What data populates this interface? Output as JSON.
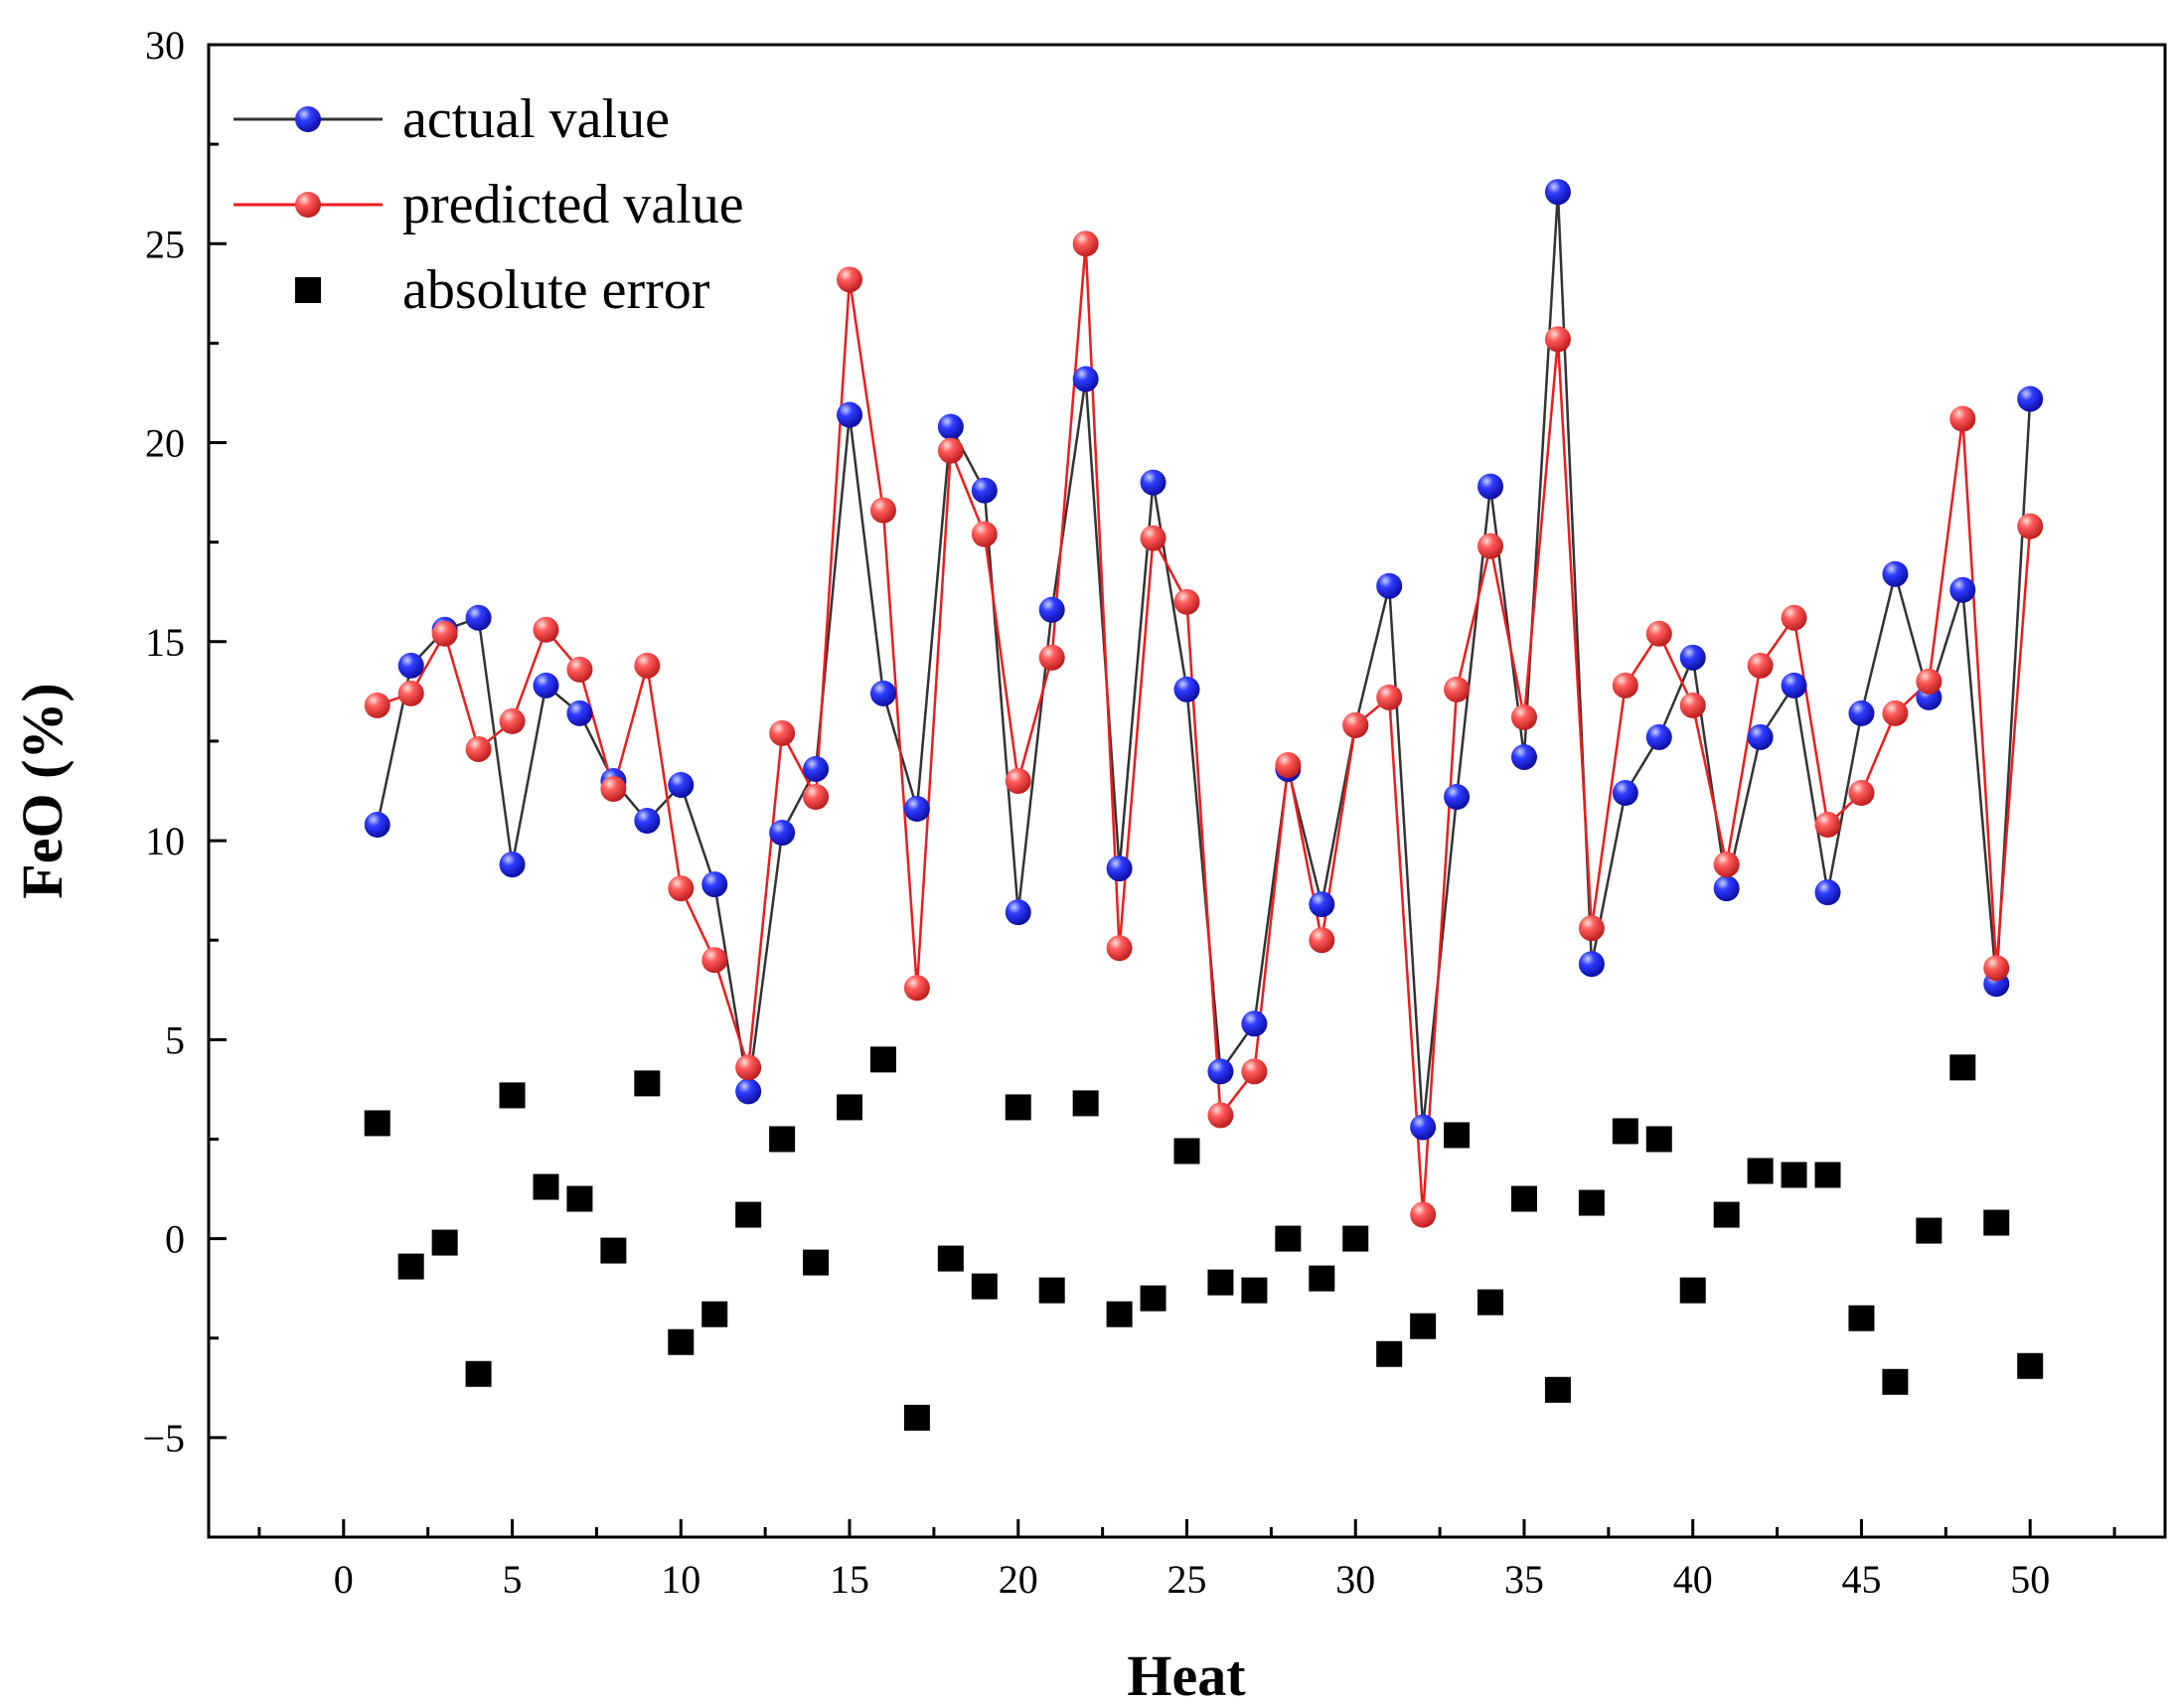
{
  "chart_data": {
    "type": "line",
    "title": "",
    "xlabel": "Heat",
    "ylabel": "FeO (%)",
    "xlim": [
      -4,
      54
    ],
    "ylim": [
      -7.5,
      30
    ],
    "xticks": [
      0,
      5,
      10,
      15,
      20,
      25,
      30,
      35,
      40,
      45,
      50
    ],
    "xtick_labels": [
      "0",
      "5",
      "10",
      "15",
      "20",
      "25",
      "30",
      "35",
      "40",
      "45",
      "50"
    ],
    "yticks": [
      -5,
      0,
      5,
      10,
      15,
      20,
      25,
      30
    ],
    "ytick_labels": [
      "−5",
      "0",
      "5",
      "10",
      "15",
      "20",
      "25",
      "30"
    ],
    "grid": false,
    "legend_position": "top-left",
    "x": [
      1,
      2,
      3,
      4,
      5,
      6,
      7,
      8,
      9,
      10,
      11,
      12,
      13,
      14,
      15,
      16,
      17,
      18,
      19,
      20,
      21,
      22,
      23,
      24,
      25,
      26,
      27,
      28,
      29,
      30,
      31,
      32,
      33,
      34,
      35,
      36,
      37,
      38,
      39,
      40,
      41,
      42,
      43,
      44,
      45,
      46,
      47,
      48,
      49,
      50
    ],
    "series": [
      {
        "name": "actual value",
        "style": "line-marker",
        "marker": "sphere",
        "color": "#1a1aee",
        "line_color": "#333333",
        "values": [
          10.4,
          14.4,
          15.3,
          15.6,
          9.4,
          13.9,
          13.2,
          11.5,
          10.5,
          11.4,
          8.9,
          3.7,
          10.2,
          11.8,
          20.7,
          13.7,
          10.8,
          20.4,
          18.8,
          8.2,
          15.8,
          21.6,
          9.3,
          19.0,
          13.8,
          4.2,
          5.4,
          11.8,
          8.4,
          12.9,
          16.4,
          2.8,
          11.1,
          18.9,
          12.1,
          26.3,
          6.9,
          11.2,
          12.6,
          14.6,
          8.8,
          12.6,
          13.9,
          8.7,
          13.2,
          16.7,
          13.6,
          16.3,
          6.4,
          21.1
        ]
      },
      {
        "name": "predicted value",
        "style": "line-marker",
        "marker": "sphere",
        "color": "#ee2d2d",
        "line_color": "#ee1c1c",
        "values": [
          13.4,
          13.7,
          15.2,
          12.3,
          13.0,
          15.3,
          14.3,
          11.3,
          14.4,
          8.8,
          7.0,
          4.3,
          12.7,
          11.1,
          24.1,
          18.3,
          6.3,
          19.8,
          17.7,
          11.5,
          14.6,
          25.0,
          7.3,
          17.6,
          16.0,
          3.1,
          4.2,
          11.9,
          7.5,
          12.9,
          13.6,
          0.6,
          13.8,
          17.4,
          13.1,
          22.6,
          7.8,
          13.9,
          15.2,
          13.4,
          9.4,
          14.4,
          15.6,
          10.4,
          11.2,
          13.2,
          14.0,
          20.6,
          6.8,
          17.9
        ]
      },
      {
        "name": "absolute error",
        "style": "marker",
        "marker": "square",
        "color": "#000000",
        "values": [
          2.9,
          -0.7,
          -0.1,
          -3.4,
          3.6,
          1.3,
          1.0,
          -0.3,
          3.9,
          -2.6,
          -1.9,
          0.6,
          2.5,
          -0.6,
          3.3,
          4.5,
          -4.5,
          -0.5,
          -1.2,
          3.3,
          -1.3,
          3.4,
          -1.9,
          -1.5,
          2.2,
          -1.1,
          -1.3,
          0.0,
          -1.0,
          0.0,
          -2.9,
          -2.2,
          2.6,
          -1.6,
          1.0,
          -3.8,
          0.9,
          2.7,
          2.5,
          -1.3,
          0.6,
          1.7,
          1.6,
          1.6,
          -2.0,
          -3.6,
          0.2,
          4.3,
          0.4,
          -3.2
        ]
      }
    ]
  }
}
